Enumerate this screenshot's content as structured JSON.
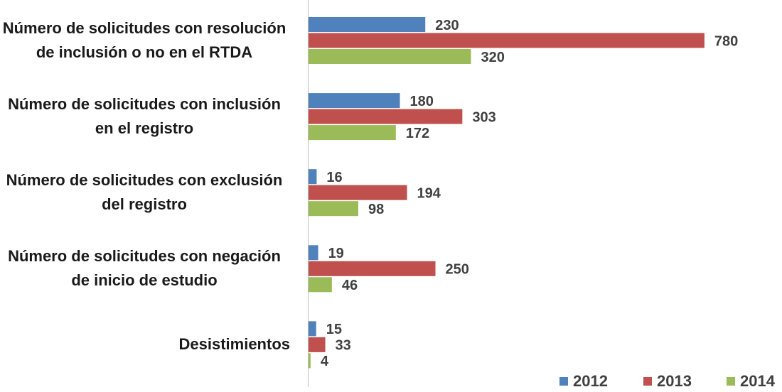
{
  "chart_data": {
    "type": "hbar",
    "categories": [
      "Número de solicitudes con resolución de inclusión o no en el RTDA",
      "Número de solicitudes con inclusión en el registro",
      "Número de solicitudes con exclusión del registro",
      "Número de solicitudes con negación de inicio de estudio",
      "Desistimientos"
    ],
    "series": [
      {
        "name": "2012",
        "color": "#4f81bd",
        "values": [
          230,
          180,
          16,
          19,
          15
        ]
      },
      {
        "name": "2013",
        "color": "#c0504d",
        "values": [
          780,
          303,
          194,
          250,
          33
        ]
      },
      {
        "name": "2014",
        "color": "#9bbb59",
        "values": [
          320,
          172,
          98,
          46,
          4
        ]
      }
    ],
    "xlim": [
      0,
      800
    ],
    "legend": "bottom-right"
  }
}
